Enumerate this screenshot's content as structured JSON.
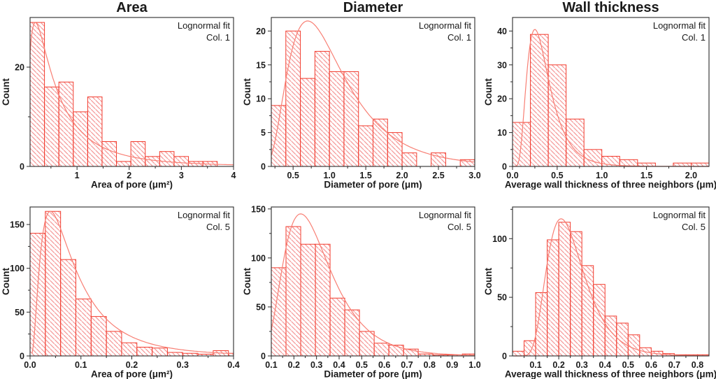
{
  "figure": {
    "colors": {
      "bar_outline": "#f23b2d",
      "hatch": "#f59b9b",
      "fit_line": "#f87f74",
      "axis": "#2b2b2b",
      "text": "#1a1a1a",
      "background": "#ffffff"
    }
  },
  "chart_data": [
    {
      "type": "bar",
      "panel_id": "area-col1",
      "title": "Area",
      "legend": [
        "Lognormal fit",
        "Col. 1"
      ],
      "xlabel": "Area of pore (μm²)",
      "ylabel": "Count",
      "xlim": [
        0.1,
        4.0
      ],
      "ylim": [
        0,
        30
      ],
      "xticks": {
        "values": [
          1,
          2,
          3,
          4
        ],
        "labels": [
          "1",
          "2",
          "3",
          "4"
        ]
      },
      "yticks": {
        "values": [
          0,
          20
        ],
        "labels": [
          "0",
          "20"
        ]
      },
      "bins": {
        "start": 0.1,
        "width": 0.276,
        "values": [
          29,
          16,
          17,
          11,
          14,
          5,
          1,
          5,
          2,
          3,
          2,
          1,
          1
        ]
      },
      "fit": {
        "mu": -0.609,
        "sigma": 1.0,
        "amp": 9.57
      }
    },
    {
      "type": "bar",
      "panel_id": "diameter-col1",
      "title": "Diameter",
      "legend": [
        "Lognormal fit",
        "Col. 1"
      ],
      "xlabel": "Diameter of pore (μm)",
      "ylabel": "Count",
      "xlim": [
        0.2,
        3.0
      ],
      "ylim": [
        0,
        22
      ],
      "xticks": {
        "values": [
          0.5,
          1.0,
          1.5,
          2.0,
          2.5,
          3.0
        ],
        "labels": [
          "0.5",
          "1.0",
          "1.5",
          "2.0",
          "2.5",
          "3.0"
        ]
      },
      "yticks": {
        "values": [
          0,
          5,
          10,
          15,
          20
        ],
        "labels": [
          "0",
          "5",
          "10",
          "15",
          "20"
        ]
      },
      "bins": {
        "start": 0.2,
        "width": 0.2,
        "values": [
          9,
          20,
          13,
          17,
          14,
          14,
          6,
          7,
          5,
          2,
          0,
          2,
          0,
          1
        ]
      },
      "fit": {
        "mu": -0.054,
        "sigma": 0.55,
        "amp": 17.5
      }
    },
    {
      "type": "bar",
      "panel_id": "wall-thickness-col1",
      "title": "Wall thickness",
      "legend": [
        "Lognormal fit",
        "Col. 1"
      ],
      "xlabel": "Average wall thickness of three neighbors (μm)",
      "ylabel": "Count",
      "xlim": [
        0.0,
        2.2
      ],
      "ylim": [
        0,
        44
      ],
      "xticks": {
        "values": [
          0.0,
          0.5,
          1.0,
          1.5,
          2.0
        ],
        "labels": [
          "0.0",
          "0.5",
          "1.0",
          "1.5",
          "2.0"
        ]
      },
      "yticks": {
        "values": [
          0,
          10,
          20,
          30,
          40
        ],
        "labels": [
          "0",
          "10",
          "20",
          "30",
          "40"
        ]
      },
      "bins": {
        "start": 0.0,
        "width": 0.2,
        "values": [
          13,
          39,
          30,
          14,
          5,
          3,
          2,
          1,
          0,
          1,
          1
        ]
      },
      "fit": {
        "mu": -1.136,
        "sigma": 0.5,
        "amp": 11.47
      }
    },
    {
      "type": "bar",
      "panel_id": "area-col5",
      "title": "",
      "legend": [
        "Lognormal fit",
        "Col. 5"
      ],
      "xlabel": "Area of pore (μm²)",
      "ylabel": "Count",
      "xlim": [
        0.0,
        0.4
      ],
      "ylim": [
        0,
        170
      ],
      "xticks": {
        "values": [
          0.0,
          0.1,
          0.2,
          0.3,
          0.4
        ],
        "labels": [
          "0.0",
          "0.1",
          "0.2",
          "0.3",
          "0.4"
        ]
      },
      "yticks": {
        "values": [
          0,
          50,
          100,
          150
        ],
        "labels": [
          "0",
          "50",
          "100",
          "150"
        ]
      },
      "bins": {
        "start": 0.0,
        "width": 0.03,
        "values": [
          140,
          165,
          110,
          65,
          45,
          28,
          15,
          10,
          9,
          4,
          3,
          2,
          6,
          3
        ]
      },
      "fit": {
        "mu": -2.579,
        "sigma": 0.8,
        "amp": 9.09
      }
    },
    {
      "type": "bar",
      "panel_id": "diameter-col5",
      "title": "",
      "legend": [
        "Lognormal fit",
        "Col. 5"
      ],
      "xlabel": "Diameter of pore (μm)",
      "ylabel": "Count",
      "xlim": [
        0.1,
        1.0
      ],
      "ylim": [
        0,
        152
      ],
      "xticks": {
        "values": [
          0.1,
          0.2,
          0.3,
          0.4,
          0.5,
          0.6,
          0.7,
          0.8,
          0.9,
          1.0
        ],
        "labels": [
          "0.1",
          "0.2",
          "0.3",
          "0.4",
          "0.5",
          "0.6",
          "0.7",
          "0.8",
          "0.9",
          "1.0"
        ]
      },
      "yticks": {
        "values": [
          0,
          50,
          100,
          150
        ],
        "labels": [
          "0",
          "50",
          "100",
          "150"
        ]
      },
      "bins": {
        "start": 0.1,
        "width": 0.065,
        "values": [
          90,
          132,
          114,
          114,
          59,
          47,
          25,
          13,
          11,
          7,
          2,
          1,
          1,
          2
        ]
      },
      "fit": {
        "mu": -1.267,
        "sigma": 0.45,
        "amp": 36.9
      }
    },
    {
      "type": "bar",
      "panel_id": "wall-thickness-col5",
      "title": "",
      "legend": [
        "Lognormal fit",
        "Col. 5"
      ],
      "xlabel": "Average wall thickness of three neighbors (μm)",
      "ylabel": "Count",
      "xlim": [
        0.0,
        0.85
      ],
      "ylim": [
        0,
        127
      ],
      "xticks": {
        "values": [
          0.1,
          0.2,
          0.3,
          0.4,
          0.5,
          0.6,
          0.7,
          0.8
        ],
        "labels": [
          "0.1",
          "0.2",
          "0.3",
          "0.4",
          "0.5",
          "0.6",
          "0.7",
          "0.8"
        ]
      },
      "yticks": {
        "values": [
          0,
          50,
          100
        ],
        "labels": [
          "0",
          "50",
          "100"
        ]
      },
      "bins": {
        "start": 0.0,
        "width": 0.05,
        "values": [
          4,
          13,
          54,
          99,
          114,
          106,
          77,
          61,
          34,
          28,
          18,
          7,
          4,
          2,
          1,
          1,
          1
        ]
      },
      "fit": {
        "mu": -1.416,
        "sigma": 0.38,
        "amp": 26.4
      }
    }
  ]
}
